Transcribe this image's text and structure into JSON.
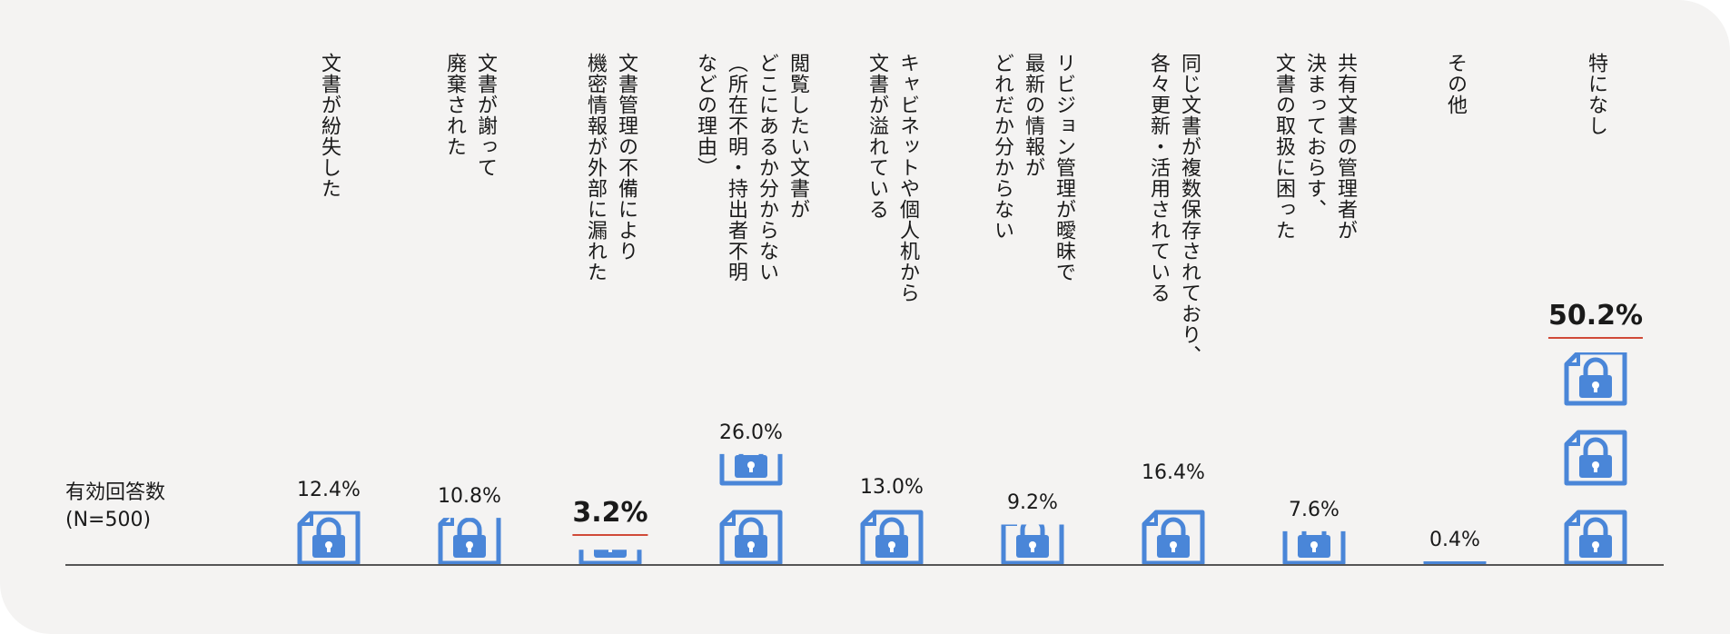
{
  "sample_label": "有効回答数\n(N=500)",
  "colors": {
    "icon": "#4a86d8",
    "axis": "#555555",
    "emphasis_underline": "#d04a38",
    "background": "#f4f3f2"
  },
  "chart_data": {
    "type": "bar",
    "bar_style": "stacked-document-lock-icons",
    "categories": [
      "文書が紛失した",
      "文書が謝って\n廃棄された",
      "文書管理の不備により\n機密情報が外部に漏れた",
      "閲覧したい文書が\nどこにあるか分からない\n（所在不明・持出者不明\nなどの理由）",
      "キャビネットや個人机から\n文書が溢れている",
      "リビジョン管理が曖昧で\n最新の情報が\nどれだか分からない",
      "同じ文書が複数保存されており、\n各々更新・活用されている",
      "共有文書の管理者が\n決まっておらす、\n文書の取扱に困った",
      "その他",
      "特になし"
    ],
    "values": [
      12.4,
      10.8,
      3.2,
      26.0,
      13.0,
      9.2,
      16.4,
      7.6,
      0.4,
      50.2
    ],
    "value_labels": [
      "12.4%",
      "10.8%",
      "3.2%",
      "26.0%",
      "13.0%",
      "9.2%",
      "16.4%",
      "7.6%",
      "0.4%",
      "50.2%"
    ],
    "emphasized": [
      "3.2%",
      "50.2%"
    ],
    "ylim": [
      0,
      50.2
    ]
  }
}
